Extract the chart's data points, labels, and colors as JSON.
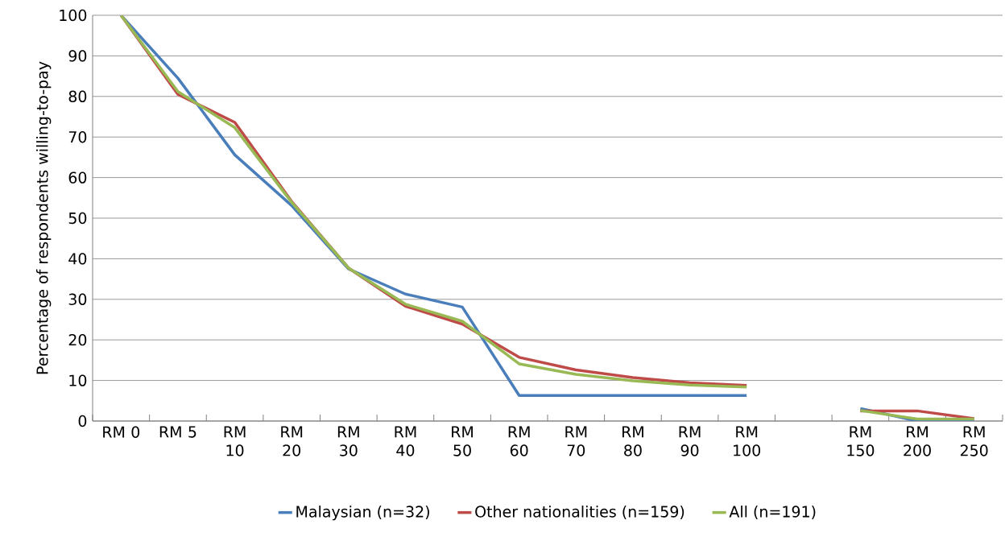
{
  "chart_data": {
    "type": "line",
    "ylabel": "Percentage of respondents willing-to-pay",
    "categories": [
      "RM 0",
      "RM 5",
      "RM 10",
      "RM 20",
      "RM 30",
      "RM 40",
      "RM 50",
      "RM 60",
      "RM 70",
      "RM 80",
      "RM 90",
      "RM 100",
      null,
      "RM 150",
      "RM 200",
      "RM 250"
    ],
    "series": [
      {
        "name": "Malaysian (n=32)",
        "color": "#4a7ebb",
        "values": [
          100,
          84.5,
          65.6,
          53.1,
          37.5,
          31.3,
          28.1,
          6.3,
          6.3,
          6.3,
          6.3,
          6.3,
          null,
          3.1,
          0,
          0
        ]
      },
      {
        "name": "Other nationalities (n=159)",
        "color": "#be4b48",
        "values": [
          100,
          80.5,
          73.6,
          54.1,
          37.7,
          28.3,
          23.9,
          15.7,
          12.6,
          10.7,
          9.4,
          8.8,
          null,
          2.5,
          2.5,
          0.6
        ]
      },
      {
        "name": "All (n=191)",
        "color": "#98b954",
        "values": [
          100,
          81.2,
          72.3,
          53.9,
          37.7,
          28.8,
          24.6,
          14.1,
          11.5,
          9.9,
          8.9,
          8.4,
          null,
          2.6,
          0.5,
          0.5
        ]
      }
    ],
    "ylim": [
      0,
      100
    ],
    "yticks": [
      0,
      10,
      20,
      30,
      40,
      50,
      60,
      70,
      80,
      90,
      100
    ],
    "grid": "y",
    "legend": "bottom",
    "marker": "none",
    "line_style": "solid"
  }
}
